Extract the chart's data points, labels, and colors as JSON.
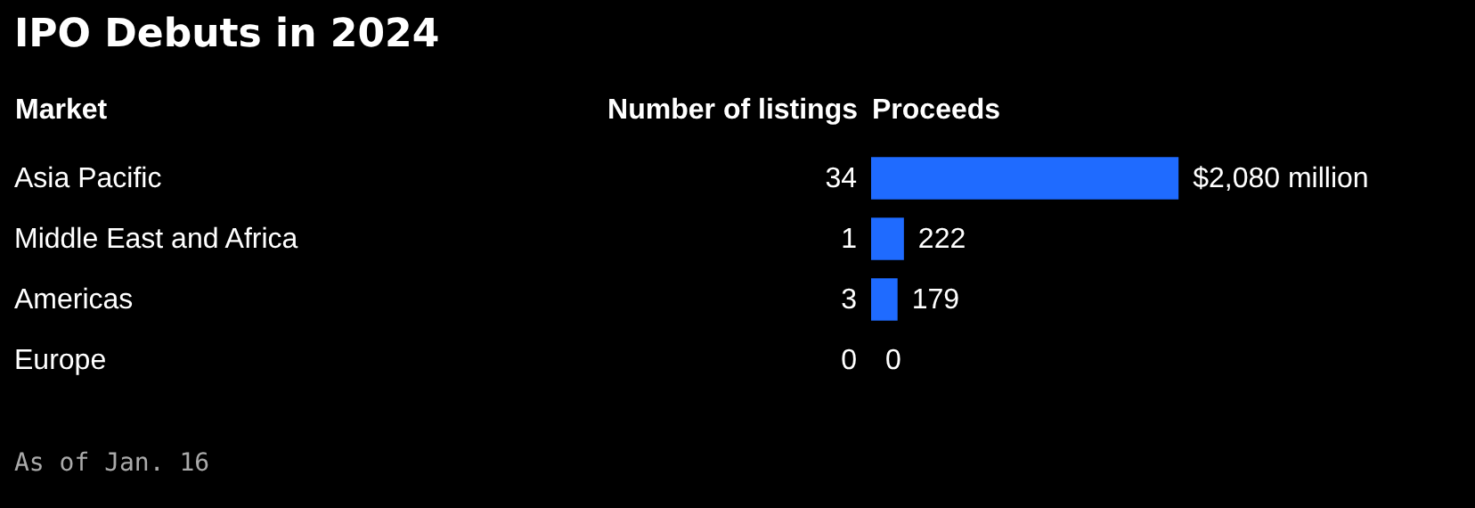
{
  "chart_data": {
    "type": "bar",
    "orientation": "horizontal",
    "title": "IPO Debuts in 2024",
    "ylabel": "Market",
    "xlabel": "Proceeds",
    "categories": [
      "Asia Pacific",
      "Middle East and Africa",
      "Americas",
      "Europe"
    ],
    "values": [
      2080,
      222,
      179,
      0
    ],
    "value_labels": [
      "$2,080 million",
      "222",
      "179",
      "0"
    ],
    "color": "#1f6bff",
    "annotations": [
      "Number of listings",
      "34",
      "1",
      "3",
      "0",
      "As of Jan. 16"
    ]
  }
}
